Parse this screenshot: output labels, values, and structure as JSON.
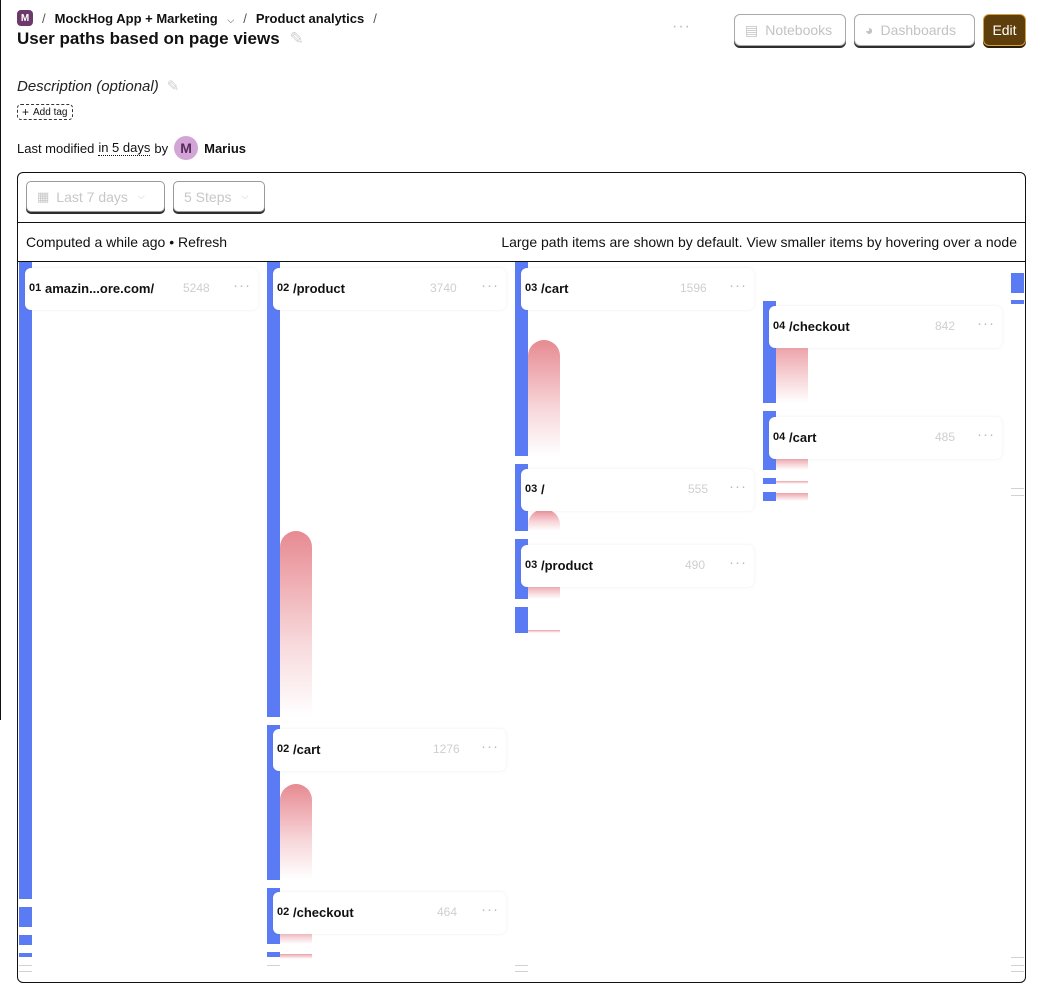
{
  "header": {
    "project_badge": "M",
    "project_name": "MockHog App + Marketing",
    "section": "Product analytics",
    "sep": "/",
    "title": "User paths based on page views",
    "more": "···",
    "buttons": {
      "notebooks": "Notebooks",
      "dashboards": "Dashboards",
      "edit": "Edit"
    }
  },
  "description_placeholder": "Description (optional)",
  "add_tag": "Add tag",
  "modified": {
    "prefix": "Last modified",
    "relative": "in 5 days",
    "by": "by",
    "avatar_letter": "M",
    "author": "Marius"
  },
  "filters": {
    "date_range": "Last 7 days",
    "steps": "5 Steps"
  },
  "info": {
    "computed": "Computed a while ago • Refresh",
    "hint": "Large path items are shown by default. View smaller items by hovering over a node"
  },
  "icons": {
    "pencil": "pencil-icon",
    "notebook": "notebook-icon",
    "dashboard": "dashboard-icon",
    "calendar": "calendar-icon",
    "chevron": "chevron-down-icon",
    "plus": "plus-icon"
  },
  "colors": {
    "node_bar": "#5b7bf4",
    "flow": "#e58088",
    "edit_button": "#5e3f0c"
  },
  "nodes": [
    {
      "step": "01",
      "label": "amazin...ore.com/",
      "count": "5248",
      "more": "···"
    },
    {
      "step": "02",
      "label": "/product",
      "count": "3740",
      "more": "···"
    },
    {
      "step": "02",
      "label": "/cart",
      "count": "1276",
      "more": "···"
    },
    {
      "step": "02",
      "label": "/checkout",
      "count": "464",
      "more": "···"
    },
    {
      "step": "03",
      "label": "/cart",
      "count": "1596",
      "more": "···"
    },
    {
      "step": "03",
      "label": "/",
      "count": "555",
      "more": "···"
    },
    {
      "step": "03",
      "label": "/product",
      "count": "490",
      "more": "···"
    },
    {
      "step": "04",
      "label": "/checkout",
      "count": "842",
      "more": "···"
    },
    {
      "step": "04",
      "label": "/cart",
      "count": "485",
      "more": "···"
    }
  ]
}
